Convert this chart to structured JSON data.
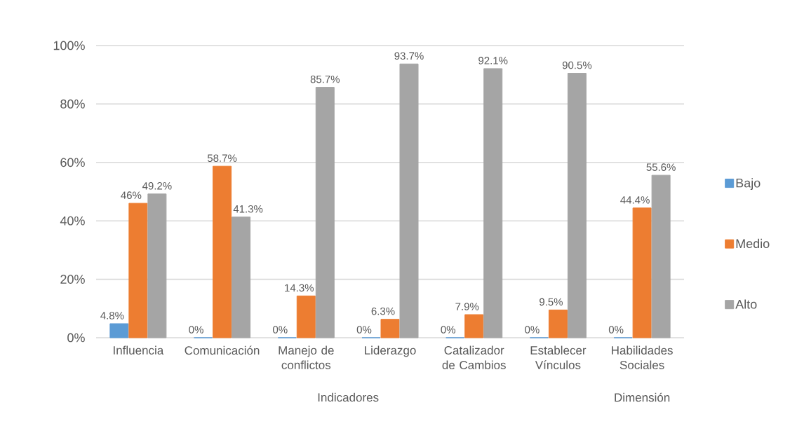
{
  "chart_data": {
    "type": "bar",
    "categories": [
      "Influencia",
      "Comunicación",
      "Manejo de conflictos",
      "Liderazgo",
      "Catalizador de Cambios",
      "Establecer Vínculos",
      "Habilidades Sociales"
    ],
    "series": [
      {
        "name": "Bajo",
        "color": "#5b9bd5",
        "values": [
          4.8,
          0,
          0,
          0,
          0,
          0,
          0
        ],
        "value_labels": [
          "4.8%",
          "0%",
          "0%",
          "0%",
          "0%",
          "0%",
          "0%"
        ]
      },
      {
        "name": "Medio",
        "color": "#ed7d31",
        "values": [
          46,
          58.7,
          14.3,
          6.3,
          7.9,
          9.5,
          44.4
        ],
        "value_labels": [
          "46%",
          "58.7%",
          "14.3%",
          "6.3%",
          "7.9%",
          "9.5%",
          "44.4%"
        ]
      },
      {
        "name": "Alto",
        "color": "#a5a5a5",
        "values": [
          49.2,
          41.3,
          85.7,
          93.7,
          92.1,
          90.5,
          55.6
        ],
        "value_labels": [
          "49.2%",
          "41.3%",
          "85.7%",
          "93.7%",
          "92.1%",
          "90.5%",
          "55.6%"
        ]
      }
    ],
    "ylim": [
      0,
      100
    ],
    "yticks": [
      {
        "value": 0,
        "label": "0%"
      },
      {
        "value": 20,
        "label": "20%"
      },
      {
        "value": 40,
        "label": "40%"
      },
      {
        "value": 60,
        "label": "60%"
      },
      {
        "value": 80,
        "label": "80%"
      },
      {
        "value": 100,
        "label": "100%"
      }
    ],
    "grid": "y",
    "legend": "right",
    "annotations": [
      "Indicadores",
      "Dimensión"
    ]
  }
}
